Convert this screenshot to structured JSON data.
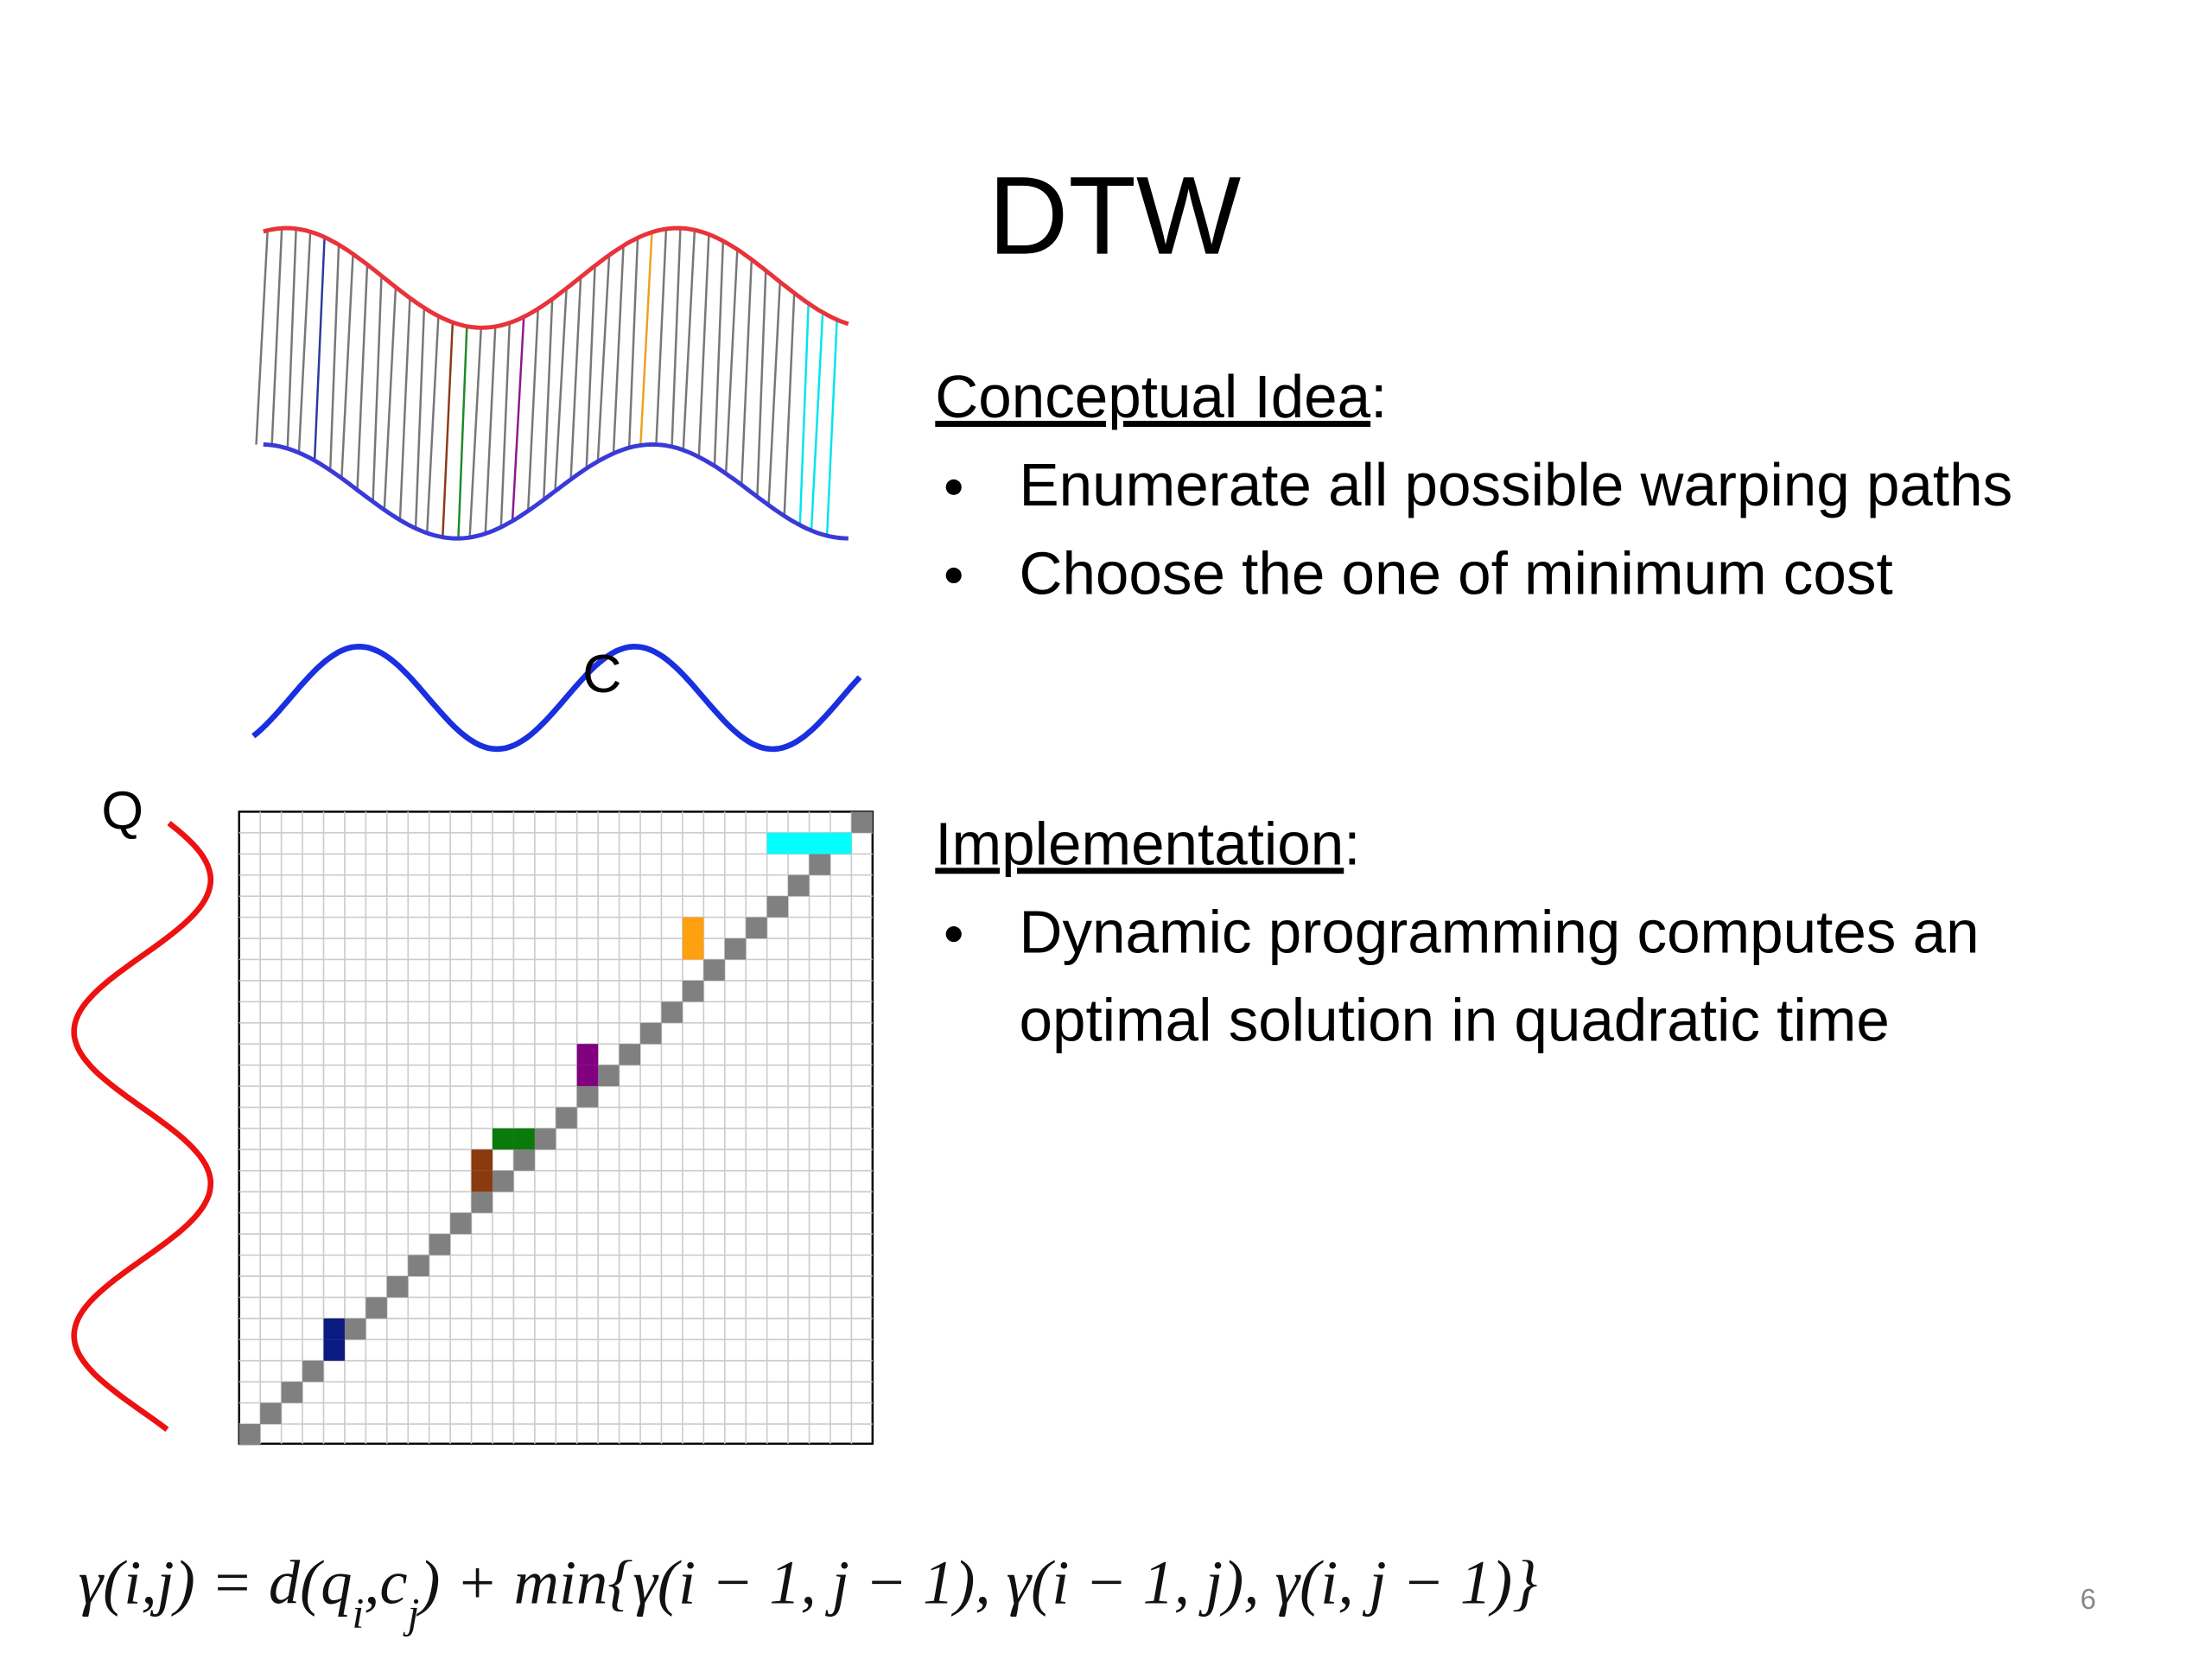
{
  "title": "DTW",
  "illustration": {
    "series_c_label": "C",
    "series_q_label": "Q"
  },
  "sections": [
    {
      "heading": "Conceptual Idea",
      "suffix": ":",
      "bullets": [
        [
          "Enumerate all possible warping paths"
        ],
        [
          "Choose the one of minimum cost"
        ]
      ]
    },
    {
      "heading": "Implementation",
      "suffix": ":",
      "bullets": [
        [
          "Dynamic programming computes an",
          "optimal solution in quadratic time"
        ]
      ]
    }
  ],
  "formula": [
    {
      "text": "γ(i,j) = d(q"
    },
    {
      "text": "i",
      "sub": true
    },
    {
      "text": ",c"
    },
    {
      "text": "j",
      "sub": true
    },
    {
      "text": ") + min{γ(i − 1, j − 1), γ(i − 1, j), γ(i, j − 1)}"
    }
  ],
  "page_number": "6"
}
